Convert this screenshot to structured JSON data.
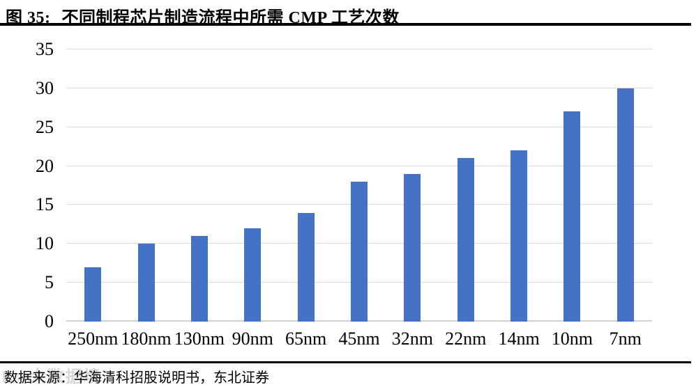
{
  "figure": {
    "title_prefix": "图 35:",
    "title": "不同制程芯片制造流程中所需 CMP 工艺次数",
    "source": "数据来源：华海清科招股说明书，东北证券",
    "watermark": "K∞大数据境"
  },
  "chart_data": {
    "type": "bar",
    "title": "不同制程芯片制造流程中所需 CMP 工艺次数",
    "categories": [
      "250nm",
      "180nm",
      "130nm",
      "90nm",
      "65nm",
      "45nm",
      "32nm",
      "22nm",
      "14nm",
      "10nm",
      "7nm"
    ],
    "values": [
      7,
      10,
      11,
      12,
      14,
      18,
      19,
      21,
      22,
      27,
      30
    ],
    "xlabel": "",
    "ylabel": "",
    "ylim": [
      0,
      35
    ],
    "ytick_step": 5,
    "grid": true,
    "legend_position": "none",
    "bar_color": "#4472C4",
    "gridline_color": "#D9D9D9",
    "baseline_color": "#D2D2D2"
  }
}
